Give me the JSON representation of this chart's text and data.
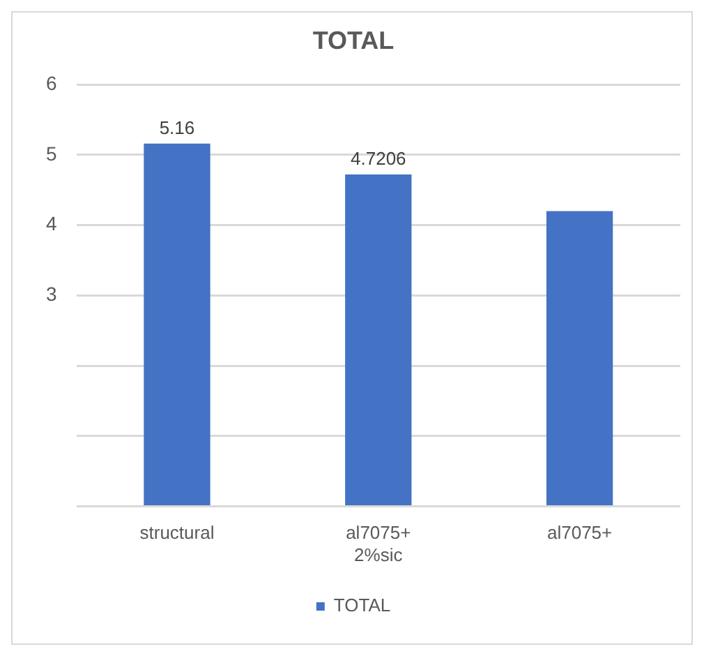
{
  "chart_data": {
    "type": "bar",
    "title": "TOTAL",
    "categories": [
      "structural",
      "al7075+ 2%sic",
      "al7075+"
    ],
    "series": [
      {
        "name": "TOTAL",
        "color": "#4472c4",
        "values": [
          5.16,
          4.7206,
          4.2
        ],
        "value_labels": [
          "5.16",
          "4.7206",
          null
        ]
      }
    ],
    "ylim": [
      0,
      6
    ],
    "yticks": [
      {
        "value": 0,
        "label": null
      },
      {
        "value": 1,
        "label": null
      },
      {
        "value": 2,
        "label": null
      },
      3,
      4,
      5,
      6
    ],
    "grid": "y",
    "legend": "bottom"
  }
}
